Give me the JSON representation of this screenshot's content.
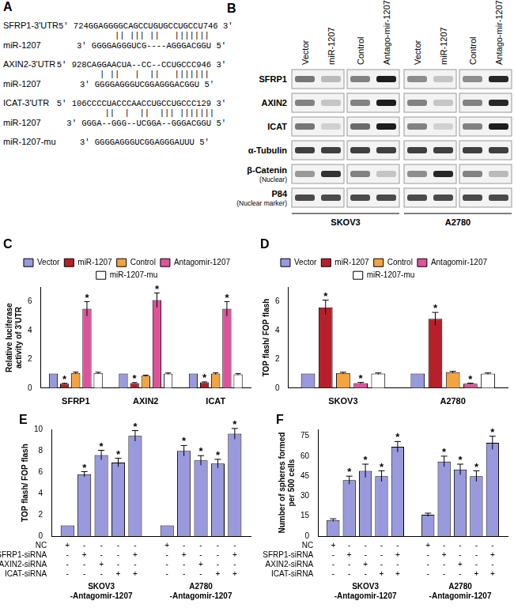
{
  "panel_a": {
    "title": "A",
    "rows": [
      {
        "label": "SFRP1-3'UTR",
        "target": "5' 724GGAGGGGCAGCCUGUGCCUGCCU746 3'",
        "pairing": "    || ||| ||   |||||||",
        "mirna_label": "miR-1207",
        "mirna": "3' GGGGAGGGUCG----AGGGACGGU 5'"
      },
      {
        "label": "AXIN2-3'UTR",
        "target": "5' 928CAGGAACUA--CC--CCUGCCC946 3'",
        "pairing": " | ||   |  ||   |||||||",
        "mirna_label": "miR-1207",
        "mirna": "3' GGGGAGGGUCGGAGGGACGGU 5'"
      },
      {
        "label": "ICAT-3'UTR",
        "target": "5' 106CCCCUACCCAACCUGCCUGCCC129 3'",
        "pairing": "  ||  |  ||  ||| |||||||",
        "mirna_label": "miR-1207",
        "mirna": "3' GGGA--GGG--UCGGA--GGGACGGU 5'"
      }
    ],
    "mutant": {
      "label": "miR-1207-mu",
      "sequence": "3' GGGGAGGGUCGGAGGGAUUU 5'"
    }
  },
  "panel_b": {
    "title": "B",
    "lanes": [
      "Vector",
      "miR-1207",
      "Control",
      "Antago-mir-1207"
    ],
    "cell_lines": [
      "SKOV3",
      "A2780"
    ],
    "rows": [
      {
        "label": "SFRP1",
        "bands": [
          [
            0.55,
            0.25,
            0.5,
            0.95
          ],
          [
            0.45,
            0.2,
            0.45,
            0.9
          ]
        ]
      },
      {
        "label": "AXIN2",
        "bands": [
          [
            0.5,
            0.2,
            0.5,
            0.95
          ],
          [
            0.5,
            0.2,
            0.5,
            0.9
          ]
        ]
      },
      {
        "label": "ICAT",
        "bands": [
          [
            0.55,
            0.15,
            0.6,
            0.95
          ],
          [
            0.5,
            0.15,
            0.5,
            0.95
          ]
        ]
      },
      {
        "label": "α-Tubulin",
        "bands": [
          [
            0.8,
            0.8,
            0.8,
            0.8
          ],
          [
            0.8,
            0.8,
            0.8,
            0.8
          ]
        ]
      },
      {
        "label": "β-Catenin",
        "note": "(Nuclear)",
        "bands": [
          [
            0.4,
            0.85,
            0.5,
            0.2
          ],
          [
            0.45,
            0.9,
            0.5,
            0.25
          ]
        ]
      },
      {
        "label": "P84",
        "note": "(Nuclear marker)",
        "bands": [
          [
            0.75,
            0.75,
            0.75,
            0.75
          ],
          [
            0.75,
            0.75,
            0.75,
            0.75
          ]
        ]
      }
    ]
  },
  "chart_data": [
    {
      "type": "bar",
      "title": "C",
      "ylabel": "Relative luciferase activity of 3'UTR",
      "categories": [
        "SFRP1",
        "AXIN2",
        "ICAT"
      ],
      "series": [
        {
          "name": "Vector",
          "color": "#9999dd",
          "values": [
            1,
            1,
            1
          ],
          "error": [
            null,
            null,
            null
          ],
          "annotations": [
            null,
            null,
            null
          ]
        },
        {
          "name": "miR-1207",
          "color": "#b5202a",
          "values": [
            0.3,
            0.35,
            0.4
          ],
          "error": [
            0.03,
            0.03,
            0.03
          ],
          "annotations": [
            "*",
            "*",
            "*"
          ]
        },
        {
          "name": "Control",
          "color": "#f4a340",
          "values": [
            1.05,
            0.85,
            1.0
          ],
          "error": [
            0.06,
            0.05,
            0.06
          ],
          "annotations": [
            null,
            null,
            null
          ]
        },
        {
          "name": "Antagomir-1207",
          "color": "#e0529c",
          "values": [
            5.5,
            6.1,
            5.5
          ],
          "error": [
            0.5,
            0.5,
            0.5
          ],
          "annotations": [
            "*",
            "*",
            "*"
          ]
        },
        {
          "name": "miR-1207-mu",
          "color": "#ffffff",
          "values": [
            1.05,
            1.0,
            0.95
          ],
          "error": [
            0.05,
            0.05,
            0.05
          ],
          "annotations": [
            null,
            null,
            null
          ]
        }
      ],
      "ylim": [
        0,
        7
      ],
      "yticks": [
        0,
        2,
        4,
        6
      ],
      "grid": false,
      "legend": "top"
    },
    {
      "type": "bar",
      "title": "D",
      "ylabel": "TOP flash/ FOP flash",
      "categories": [
        "SKOV3",
        "A2780"
      ],
      "series": [
        {
          "name": "Vector",
          "color": "#9999dd",
          "values": [
            1,
            1
          ],
          "error": [
            null,
            null
          ],
          "annotations": [
            null,
            null
          ]
        },
        {
          "name": "miR-1207",
          "color": "#b5202a",
          "values": [
            5.6,
            4.8
          ],
          "error": [
            0.5,
            0.45
          ],
          "annotations": [
            "*",
            "*"
          ]
        },
        {
          "name": "Control",
          "color": "#f4a340",
          "values": [
            1.05,
            1.1
          ],
          "error": [
            0.05,
            0.06
          ],
          "annotations": [
            null,
            null
          ]
        },
        {
          "name": "Antagomir-1207",
          "color": "#e0529c",
          "values": [
            0.35,
            0.3
          ],
          "error": [
            0.04,
            0.04
          ],
          "annotations": [
            "*",
            "*"
          ]
        },
        {
          "name": "miR-1207-mu",
          "color": "#ffffff",
          "values": [
            1.0,
            1.0
          ],
          "error": [
            0.05,
            0.05
          ],
          "annotations": [
            null,
            null
          ]
        }
      ],
      "ylim": [
        0,
        7
      ],
      "yticks": [
        0,
        2,
        4,
        6
      ],
      "grid": false,
      "legend": "top"
    },
    {
      "type": "bar",
      "title": "E",
      "ylabel": "TOP flash/ FOP flash",
      "categories": [
        "SKOV3 -Antagomir-1207",
        "A2780 -Antagomir-1207"
      ],
      "condition_labels": [
        "NC",
        "SFRP1-siRNA",
        "AXIN2-siRNA",
        "ICAT-siRNA"
      ],
      "series": [
        {
          "color": "#9999dd",
          "values": [
            1,
            1
          ],
          "error": [
            null,
            null
          ],
          "annotations": [
            null,
            null
          ],
          "conditions": [
            "+",
            "-",
            "-",
            "-"
          ]
        },
        {
          "color": "#9999dd",
          "values": [
            5.8,
            8.0
          ],
          "error": [
            0.25,
            0.5
          ],
          "annotations": [
            "*",
            "*"
          ],
          "conditions": [
            "-",
            "+",
            "-",
            "-"
          ]
        },
        {
          "color": "#9999dd",
          "values": [
            7.6,
            7.1
          ],
          "error": [
            0.45,
            0.45
          ],
          "annotations": [
            "*",
            "*"
          ],
          "conditions": [
            "-",
            "-",
            "+",
            "-"
          ]
        },
        {
          "color": "#9999dd",
          "values": [
            6.9,
            6.8
          ],
          "error": [
            0.4,
            0.4
          ],
          "annotations": [
            "*",
            "*"
          ],
          "conditions": [
            "-",
            "-",
            "-",
            "+"
          ]
        },
        {
          "color": "#9999dd",
          "values": [
            9.4,
            9.6
          ],
          "error": [
            0.5,
            0.5
          ],
          "annotations": [
            "*",
            "*"
          ],
          "conditions": [
            "-",
            "+",
            "-",
            "+"
          ]
        }
      ],
      "ylim": [
        0,
        10
      ],
      "yticks": [
        0,
        2,
        4,
        6,
        8,
        10
      ],
      "grid": false
    },
    {
      "type": "bar",
      "title": "F",
      "ylabel": "Number of spheres formed per 500 cells",
      "categories": [
        "SKOV3 -Antagomir-1207",
        "A2780 -Antagomir-1207"
      ],
      "condition_labels": [
        "NC",
        "SFRP1-siRNA",
        "AXIN2-siRNA",
        "ICAT-siRNA"
      ],
      "series": [
        {
          "color": "#9999dd",
          "values": [
            12,
            16
          ],
          "error": [
            1,
            1.2
          ],
          "annotations": [
            null,
            null
          ],
          "conditions": [
            "+",
            "-",
            "-",
            "-"
          ]
        },
        {
          "color": "#9999dd",
          "values": [
            42,
            56
          ],
          "error": [
            3,
            4
          ],
          "annotations": [
            "*",
            "*"
          ],
          "conditions": [
            "-",
            "+",
            "-",
            "-"
          ]
        },
        {
          "color": "#9999dd",
          "values": [
            49,
            50
          ],
          "error": [
            5,
            4
          ],
          "annotations": [
            "*",
            "*"
          ],
          "conditions": [
            "-",
            "-",
            "+",
            "-"
          ]
        },
        {
          "color": "#9999dd",
          "values": [
            45,
            45
          ],
          "error": [
            4,
            4
          ],
          "annotations": [
            "*",
            "*"
          ],
          "conditions": [
            "-",
            "-",
            "-",
            "+"
          ]
        },
        {
          "color": "#9999dd",
          "values": [
            67,
            70
          ],
          "error": [
            4,
            5
          ],
          "annotations": [
            "*",
            "*"
          ],
          "conditions": [
            "-",
            "+",
            "-",
            "+"
          ]
        }
      ],
      "ylim": [
        0,
        80
      ],
      "yticks": [
        0,
        15,
        30,
        45,
        60,
        75
      ],
      "grid": false
    }
  ]
}
